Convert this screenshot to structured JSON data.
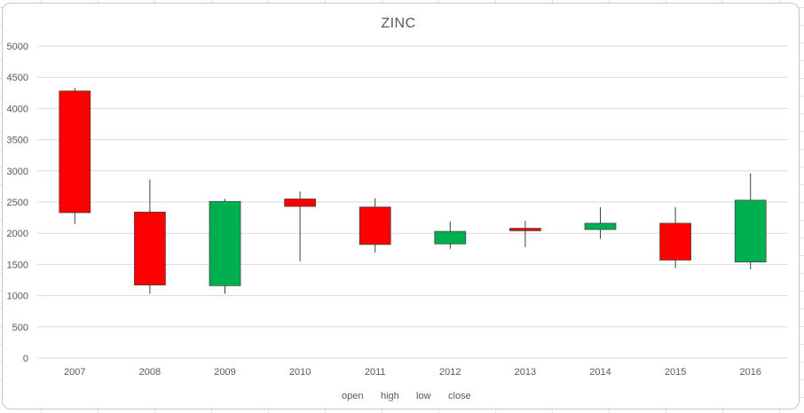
{
  "chart_data": {
    "type": "candlestick",
    "title": "ZINC",
    "categories": [
      "2007",
      "2008",
      "2009",
      "2010",
      "2011",
      "2012",
      "2013",
      "2014",
      "2015",
      "2016"
    ],
    "series": [
      {
        "name": "open",
        "values": [
          4280,
          2340,
          1160,
          2550,
          2420,
          1830,
          2080,
          2060,
          2160,
          1540
        ]
      },
      {
        "name": "high",
        "values": [
          4330,
          2860,
          2550,
          2670,
          2560,
          2190,
          2200,
          2420,
          2420,
          2960
        ]
      },
      {
        "name": "low",
        "values": [
          2150,
          1030,
          1030,
          1550,
          1690,
          1750,
          1780,
          1910,
          1440,
          1420
        ]
      },
      {
        "name": "close",
        "values": [
          2330,
          1170,
          2510,
          2430,
          1820,
          2030,
          2040,
          2160,
          1570,
          2530
        ]
      }
    ],
    "ylim": [
      0,
      5000
    ],
    "yticks": [
      "0",
      "500",
      "1000",
      "1500",
      "2000",
      "2500",
      "3000",
      "3500",
      "4000",
      "4500",
      "5000"
    ],
    "grid": true,
    "legend_position": "bottom",
    "legend": [
      "open",
      "high",
      "low",
      "close"
    ],
    "colors": {
      "up": "#00b050",
      "down": "#ff0000",
      "candle_border": "#404040",
      "wick": "#404040",
      "gridline": "#d9d9d9"
    }
  }
}
